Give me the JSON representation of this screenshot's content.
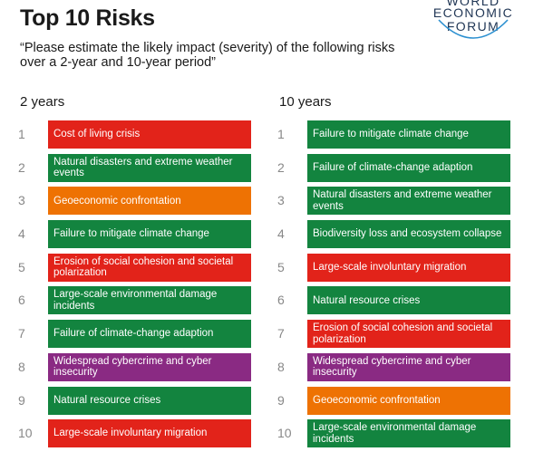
{
  "title": "Top 10 Risks",
  "logo": {
    "line1": "WORLD",
    "line2": "ECONOMIC",
    "line3": "FORUM"
  },
  "subtitle": "“Please estimate the likely impact (severity) of the following risks over a 2-year and 10-year period”",
  "colors": {
    "red": "#e2231a",
    "green": "#13843f",
    "orange": "#ee7203",
    "purple": "#8a2a83"
  },
  "columns": [
    {
      "heading": "2 years",
      "items": [
        {
          "rank": "1",
          "label": "Cost of living crisis",
          "category": "red"
        },
        {
          "rank": "2",
          "label": "Natural disasters and extreme weather events",
          "category": "green"
        },
        {
          "rank": "3",
          "label": "Geoeconomic confrontation",
          "category": "orange"
        },
        {
          "rank": "4",
          "label": "Failure to mitigate climate change",
          "category": "green"
        },
        {
          "rank": "5",
          "label": "Erosion of social cohesion and societal polarization",
          "category": "red"
        },
        {
          "rank": "6",
          "label": "Large-scale environmental damage incidents",
          "category": "green"
        },
        {
          "rank": "7",
          "label": "Failure of climate-change adaption",
          "category": "green"
        },
        {
          "rank": "8",
          "label": "Widespread cybercrime and cyber insecurity",
          "category": "purple"
        },
        {
          "rank": "9",
          "label": "Natural resource crises",
          "category": "green"
        },
        {
          "rank": "10",
          "label": "Large-scale involuntary migration",
          "category": "red"
        }
      ]
    },
    {
      "heading": "10 years",
      "items": [
        {
          "rank": "1",
          "label": "Failure to mitigate climate change",
          "category": "green"
        },
        {
          "rank": "2",
          "label": "Failure of climate-change adaption",
          "category": "green"
        },
        {
          "rank": "3",
          "label": "Natural disasters and extreme weather events",
          "category": "green"
        },
        {
          "rank": "4",
          "label": "Biodiversity loss and ecosystem collapse",
          "category": "green"
        },
        {
          "rank": "5",
          "label": "Large-scale involuntary migration",
          "category": "red"
        },
        {
          "rank": "6",
          "label": "Natural resource crises",
          "category": "green"
        },
        {
          "rank": "7",
          "label": "Erosion of social cohesion and societal polarization",
          "category": "red"
        },
        {
          "rank": "8",
          "label": "Widespread cybercrime and cyber insecurity",
          "category": "purple"
        },
        {
          "rank": "9",
          "label": "Geoeconomic confrontation",
          "category": "orange"
        },
        {
          "rank": "10",
          "label": "Large-scale environmental damage incidents",
          "category": "green"
        }
      ]
    }
  ]
}
